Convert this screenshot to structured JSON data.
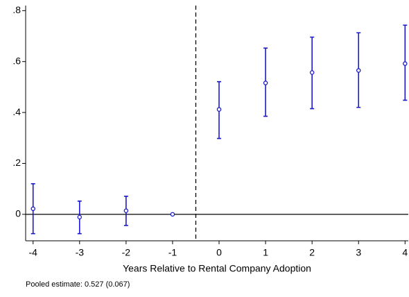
{
  "chart_data": {
    "type": "errorbar",
    "x_label": "Years Relative to Rental Company Adoption",
    "note": "Pooled estimate: 0.527 (0.067)",
    "x": [
      -4,
      -3,
      -2,
      -1,
      0,
      1,
      2,
      3,
      4
    ],
    "series": [
      {
        "color": "#1a1acc",
        "values": [
          0.022,
          -0.011,
          0.014,
          0,
          0.412,
          0.516,
          0.557,
          0.565,
          0.592
        ],
        "lower": [
          -0.076,
          -0.076,
          -0.044,
          null,
          0.298,
          0.385,
          0.415,
          0.42,
          0.448
        ],
        "upper": [
          0.12,
          0.052,
          0.071,
          null,
          0.521,
          0.653,
          0.696,
          0.713,
          0.743
        ]
      }
    ],
    "xlim": [
      -4.16,
      4.07
    ],
    "ylim": [
      -0.104,
      0.82
    ],
    "xticks": [
      -4,
      -3,
      -2,
      -1,
      0,
      1,
      2,
      3,
      4
    ],
    "yticks": [
      0,
      {
        "value": 0.2,
        "label": ".2"
      },
      {
        "value": 0.4,
        "label": ".4"
      },
      {
        "value": 0.6,
        "label": ".6"
      },
      {
        "value": 0.8,
        "label": ".8"
      }
    ],
    "vline": -0.5,
    "hline": 0
  }
}
